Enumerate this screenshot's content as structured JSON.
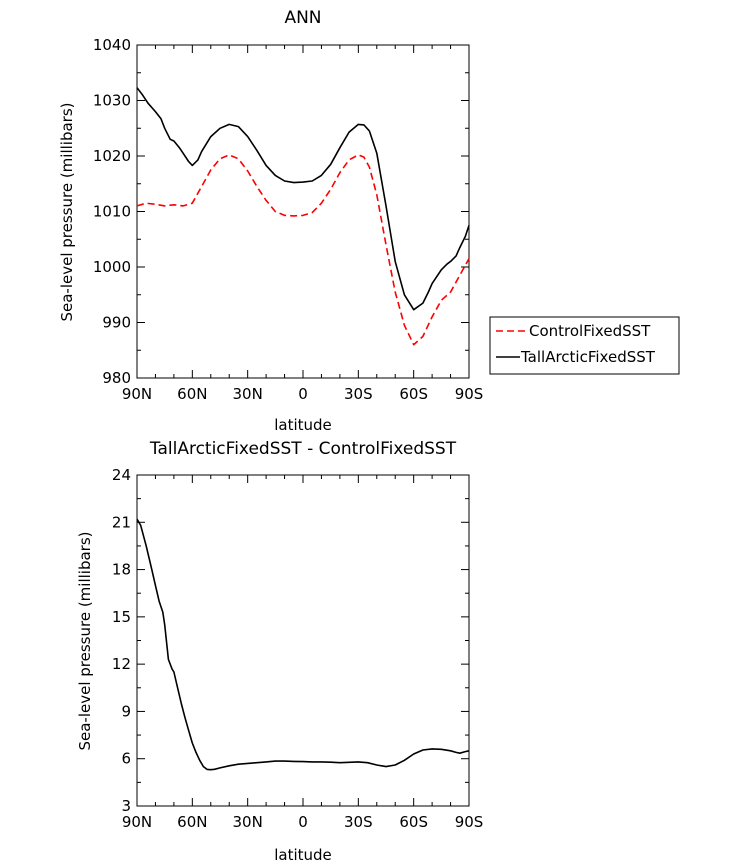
{
  "chart_data": [
    {
      "type": "line",
      "title": "ANN",
      "xlabel": "latitude",
      "ylabel": "Sea-level pressure (millibars)",
      "xlim": [
        -90,
        90
      ],
      "ylim": [
        980,
        1040
      ],
      "xticks": [
        -90,
        -60,
        -30,
        0,
        30,
        60,
        90
      ],
      "xtick_labels": [
        "90N",
        "60N",
        "30N",
        "0",
        "30S",
        "60S",
        "90S"
      ],
      "yticks": [
        980,
        990,
        1000,
        1010,
        1020,
        1030,
        1040
      ],
      "ytick_labels": [
        "980",
        "990",
        "1000",
        "1010",
        "1020",
        "1030",
        "1040"
      ],
      "legend_position": "right",
      "series": [
        {
          "name": "ControlFixedSST",
          "color": "#ff0000",
          "dash": "dashed",
          "x": [
            -90,
            -85,
            -80,
            -75,
            -70,
            -65,
            -60,
            -55,
            -50,
            -45,
            -40,
            -35,
            -30,
            -25,
            -20,
            -15,
            -10,
            -5,
            0,
            5,
            10,
            15,
            20,
            25,
            30,
            33,
            36,
            40,
            45,
            50,
            55,
            60,
            65,
            70,
            75,
            80,
            85,
            90
          ],
          "y": [
            1011,
            1011.5,
            1011.3,
            1011,
            1011.2,
            1011,
            1011.5,
            1014.5,
            1017.5,
            1019.5,
            1020.2,
            1019.5,
            1017.3,
            1014.5,
            1012,
            1010,
            1009.3,
            1009.2,
            1009.3,
            1009.8,
            1011.5,
            1014,
            1017,
            1019.3,
            1020.2,
            1019.8,
            1018,
            1013,
            1004,
            995.5,
            989.5,
            986,
            987.5,
            991,
            994,
            995.5,
            998.5,
            1001.5
          ]
        },
        {
          "name": "TallArcticFixedSST",
          "color": "#000000",
          "dash": "solid",
          "x": [
            -90,
            -87,
            -84,
            -80,
            -77,
            -75,
            -72,
            -70,
            -67,
            -65,
            -62,
            -60,
            -57,
            -55,
            -50,
            -45,
            -40,
            -35,
            -30,
            -25,
            -20,
            -15,
            -10,
            -5,
            0,
            5,
            10,
            15,
            20,
            25,
            30,
            33,
            36,
            40,
            45,
            50,
            55,
            60,
            65,
            68,
            70,
            75,
            78,
            80,
            83,
            85,
            88,
            90
          ],
          "y": [
            1032.3,
            1031,
            1029.5,
            1028,
            1026.7,
            1025,
            1023,
            1022.7,
            1021.5,
            1020.5,
            1019,
            1018.3,
            1019.3,
            1020.8,
            1023.5,
            1025,
            1025.7,
            1025.3,
            1023.5,
            1021,
            1018.3,
            1016.5,
            1015.5,
            1015.2,
            1015.3,
            1015.5,
            1016.5,
            1018.5,
            1021.5,
            1024.3,
            1025.7,
            1025.6,
            1024.5,
            1020.5,
            1011,
            1001,
            995,
            992.3,
            993.5,
            995.5,
            997,
            999.5,
            1000.5,
            1001,
            1002,
            1003.5,
            1005.5,
            1007.5
          ]
        }
      ]
    },
    {
      "type": "line",
      "title": "TallArcticFixedSST - ControlFixedSST",
      "xlabel": "latitude",
      "ylabel": "Sea-level pressure (millibars)",
      "xlim": [
        -90,
        90
      ],
      "ylim": [
        3,
        24
      ],
      "xticks": [
        -90,
        -60,
        -30,
        0,
        30,
        60,
        90
      ],
      "xtick_labels": [
        "90N",
        "60N",
        "30N",
        "0",
        "30S",
        "60S",
        "90S"
      ],
      "yticks": [
        3,
        6,
        9,
        12,
        15,
        18,
        21,
        24
      ],
      "ytick_labels": [
        "3",
        "6",
        "9",
        "12",
        "15",
        "18",
        "21",
        "24"
      ],
      "series": [
        {
          "color": "#000000",
          "dash": "solid",
          "x": [
            -90,
            -88,
            -85,
            -82,
            -80,
            -78,
            -76,
            -75,
            -73,
            -71,
            -70,
            -68,
            -66,
            -64,
            -62,
            -60,
            -58,
            -56,
            -54,
            -52,
            -50,
            -48,
            -45,
            -40,
            -35,
            -30,
            -25,
            -20,
            -15,
            -10,
            -5,
            0,
            5,
            10,
            15,
            20,
            25,
            30,
            35,
            40,
            45,
            50,
            55,
            60,
            65,
            70,
            75,
            80,
            83,
            85,
            88,
            90
          ],
          "y": [
            21.2,
            20.8,
            19.5,
            18,
            17,
            16,
            15.3,
            14.5,
            12.3,
            11.7,
            11.5,
            10.5,
            9.5,
            8.6,
            7.8,
            7,
            6.4,
            5.9,
            5.5,
            5.32,
            5.3,
            5.33,
            5.42,
            5.55,
            5.65,
            5.7,
            5.75,
            5.8,
            5.85,
            5.85,
            5.83,
            5.82,
            5.8,
            5.8,
            5.78,
            5.75,
            5.77,
            5.8,
            5.75,
            5.6,
            5.5,
            5.6,
            5.9,
            6.3,
            6.55,
            6.62,
            6.6,
            6.5,
            6.4,
            6.35,
            6.45,
            6.5
          ]
        }
      ]
    }
  ]
}
